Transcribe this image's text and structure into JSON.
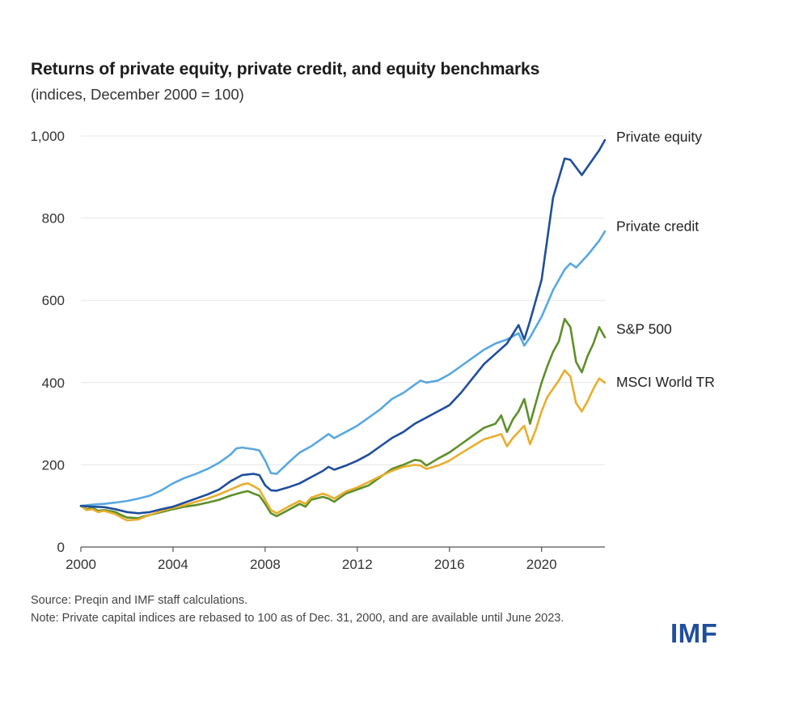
{
  "chart_data": {
    "type": "line",
    "title": "Returns of private equity, private credit, and equity benchmarks",
    "subtitle": "(indices, December 2000 = 100)",
    "xlabel": "",
    "ylabel": "",
    "xlim": [
      2000,
      2022.75
    ],
    "ylim": [
      0,
      1000
    ],
    "x_ticks": [
      2000,
      2004,
      2008,
      2012,
      2016,
      2020
    ],
    "x_tick_labels": [
      "2000",
      "2004",
      "2008",
      "2012",
      "2016",
      "2020"
    ],
    "y_ticks": [
      0,
      200,
      400,
      600,
      800,
      1000
    ],
    "y_tick_labels": [
      "0",
      "200",
      "400",
      "600",
      "800",
      "1,000"
    ],
    "grid": true,
    "legend": "direct labels at right end of lines",
    "series": [
      {
        "name": "Private equity",
        "color": "#1f4e9c",
        "points": [
          [
            2000,
            100
          ],
          [
            2000.5,
            98
          ],
          [
            2001,
            97
          ],
          [
            2001.5,
            92
          ],
          [
            2002,
            85
          ],
          [
            2002.5,
            82
          ],
          [
            2003,
            85
          ],
          [
            2003.5,
            92
          ],
          [
            2004,
            98
          ],
          [
            2004.5,
            108
          ],
          [
            2005,
            118
          ],
          [
            2005.5,
            128
          ],
          [
            2006,
            140
          ],
          [
            2006.5,
            160
          ],
          [
            2007,
            175
          ],
          [
            2007.5,
            178
          ],
          [
            2007.75,
            175
          ],
          [
            2008,
            150
          ],
          [
            2008.25,
            138
          ],
          [
            2008.5,
            137
          ],
          [
            2009,
            145
          ],
          [
            2009.5,
            155
          ],
          [
            2010,
            170
          ],
          [
            2010.5,
            185
          ],
          [
            2010.75,
            195
          ],
          [
            2011,
            188
          ],
          [
            2011.5,
            198
          ],
          [
            2012,
            210
          ],
          [
            2012.5,
            225
          ],
          [
            2013,
            245
          ],
          [
            2013.5,
            265
          ],
          [
            2014,
            280
          ],
          [
            2014.5,
            300
          ],
          [
            2015,
            315
          ],
          [
            2015.5,
            330
          ],
          [
            2016,
            345
          ],
          [
            2016.5,
            375
          ],
          [
            2017,
            410
          ],
          [
            2017.5,
            445
          ],
          [
            2018,
            470
          ],
          [
            2018.5,
            495
          ],
          [
            2019,
            540
          ],
          [
            2019.25,
            505
          ],
          [
            2019.5,
            550
          ],
          [
            2020,
            650
          ],
          [
            2020.5,
            850
          ],
          [
            2021,
            945
          ],
          [
            2021.25,
            942
          ],
          [
            2021.75,
            905
          ],
          [
            2022,
            925
          ],
          [
            2022.5,
            965
          ],
          [
            2022.75,
            990
          ]
        ]
      },
      {
        "name": "Private credit",
        "color": "#58a8e0",
        "points": [
          [
            2000,
            100
          ],
          [
            2000.5,
            103
          ],
          [
            2001,
            105
          ],
          [
            2001.5,
            108
          ],
          [
            2002,
            112
          ],
          [
            2002.5,
            118
          ],
          [
            2003,
            125
          ],
          [
            2003.5,
            138
          ],
          [
            2004,
            155
          ],
          [
            2004.5,
            168
          ],
          [
            2005,
            178
          ],
          [
            2005.5,
            190
          ],
          [
            2006,
            205
          ],
          [
            2006.5,
            225
          ],
          [
            2006.75,
            240
          ],
          [
            2007,
            242
          ],
          [
            2007.5,
            238
          ],
          [
            2007.75,
            235
          ],
          [
            2008,
            210
          ],
          [
            2008.25,
            180
          ],
          [
            2008.5,
            178
          ],
          [
            2009,
            205
          ],
          [
            2009.5,
            230
          ],
          [
            2010,
            245
          ],
          [
            2010.5,
            265
          ],
          [
            2010.75,
            275
          ],
          [
            2011,
            265
          ],
          [
            2011.5,
            280
          ],
          [
            2012,
            295
          ],
          [
            2012.5,
            315
          ],
          [
            2013,
            335
          ],
          [
            2013.5,
            360
          ],
          [
            2014,
            375
          ],
          [
            2014.5,
            395
          ],
          [
            2014.75,
            405
          ],
          [
            2015,
            400
          ],
          [
            2015.5,
            405
          ],
          [
            2016,
            420
          ],
          [
            2016.5,
            440
          ],
          [
            2017,
            460
          ],
          [
            2017.5,
            480
          ],
          [
            2018,
            495
          ],
          [
            2018.5,
            505
          ],
          [
            2019,
            520
          ],
          [
            2019.25,
            490
          ],
          [
            2019.5,
            510
          ],
          [
            2020,
            560
          ],
          [
            2020.5,
            625
          ],
          [
            2021,
            675
          ],
          [
            2021.25,
            690
          ],
          [
            2021.5,
            680
          ],
          [
            2022,
            710
          ],
          [
            2022.5,
            745
          ],
          [
            2022.75,
            768
          ]
        ]
      },
      {
        "name": "S&P 500",
        "color": "#5e8f2a",
        "points": [
          [
            2000,
            100
          ],
          [
            2000.25,
            92
          ],
          [
            2000.5,
            95
          ],
          [
            2000.75,
            88
          ],
          [
            2001,
            90
          ],
          [
            2001.5,
            85
          ],
          [
            2001.75,
            78
          ],
          [
            2002,
            72
          ],
          [
            2002.5,
            70
          ],
          [
            2002.75,
            75
          ],
          [
            2003,
            78
          ],
          [
            2003.5,
            85
          ],
          [
            2004,
            92
          ],
          [
            2004.5,
            98
          ],
          [
            2005,
            102
          ],
          [
            2005.5,
            108
          ],
          [
            2006,
            115
          ],
          [
            2006.5,
            125
          ],
          [
            2007,
            133
          ],
          [
            2007.25,
            136
          ],
          [
            2007.5,
            130
          ],
          [
            2007.75,
            125
          ],
          [
            2008,
            105
          ],
          [
            2008.25,
            82
          ],
          [
            2008.5,
            75
          ],
          [
            2009,
            90
          ],
          [
            2009.5,
            105
          ],
          [
            2009.75,
            98
          ],
          [
            2010,
            115
          ],
          [
            2010.5,
            122
          ],
          [
            2010.75,
            118
          ],
          [
            2011,
            110
          ],
          [
            2011.5,
            130
          ],
          [
            2012,
            140
          ],
          [
            2012.5,
            150
          ],
          [
            2013,
            170
          ],
          [
            2013.5,
            190
          ],
          [
            2014,
            200
          ],
          [
            2014.5,
            212
          ],
          [
            2014.75,
            210
          ],
          [
            2015,
            198
          ],
          [
            2015.5,
            215
          ],
          [
            2016,
            230
          ],
          [
            2016.5,
            250
          ],
          [
            2017,
            270
          ],
          [
            2017.5,
            290
          ],
          [
            2018,
            300
          ],
          [
            2018.25,
            320
          ],
          [
            2018.5,
            280
          ],
          [
            2018.75,
            310
          ],
          [
            2019,
            330
          ],
          [
            2019.25,
            360
          ],
          [
            2019.5,
            300
          ],
          [
            2019.75,
            350
          ],
          [
            2020,
            400
          ],
          [
            2020.25,
            440
          ],
          [
            2020.5,
            475
          ],
          [
            2020.75,
            500
          ],
          [
            2021,
            555
          ],
          [
            2021.25,
            535
          ],
          [
            2021.5,
            450
          ],
          [
            2021.75,
            425
          ],
          [
            2022,
            465
          ],
          [
            2022.25,
            495
          ],
          [
            2022.5,
            535
          ],
          [
            2022.75,
            510
          ]
        ]
      },
      {
        "name": "MSCI World TR",
        "color": "#e8ae2d",
        "points": [
          [
            2000,
            100
          ],
          [
            2000.25,
            90
          ],
          [
            2000.5,
            92
          ],
          [
            2000.75,
            85
          ],
          [
            2001,
            88
          ],
          [
            2001.5,
            80
          ],
          [
            2001.75,
            72
          ],
          [
            2002,
            65
          ],
          [
            2002.5,
            67
          ],
          [
            2002.75,
            73
          ],
          [
            2003,
            78
          ],
          [
            2003.5,
            88
          ],
          [
            2004,
            95
          ],
          [
            2004.5,
            102
          ],
          [
            2005,
            110
          ],
          [
            2005.5,
            118
          ],
          [
            2006,
            128
          ],
          [
            2006.5,
            140
          ],
          [
            2007,
            152
          ],
          [
            2007.25,
            155
          ],
          [
            2007.5,
            148
          ],
          [
            2007.75,
            140
          ],
          [
            2008,
            115
          ],
          [
            2008.25,
            90
          ],
          [
            2008.5,
            82
          ],
          [
            2009,
            98
          ],
          [
            2009.5,
            112
          ],
          [
            2009.75,
            105
          ],
          [
            2010,
            120
          ],
          [
            2010.5,
            130
          ],
          [
            2010.75,
            125
          ],
          [
            2011,
            118
          ],
          [
            2011.5,
            135
          ],
          [
            2012,
            145
          ],
          [
            2012.5,
            158
          ],
          [
            2013,
            172
          ],
          [
            2013.5,
            185
          ],
          [
            2014,
            195
          ],
          [
            2014.5,
            200
          ],
          [
            2014.75,
            198
          ],
          [
            2015,
            190
          ],
          [
            2015.5,
            198
          ],
          [
            2016,
            210
          ],
          [
            2016.5,
            228
          ],
          [
            2017,
            245
          ],
          [
            2017.5,
            262
          ],
          [
            2018,
            270
          ],
          [
            2018.25,
            275
          ],
          [
            2018.5,
            245
          ],
          [
            2018.75,
            265
          ],
          [
            2019,
            280
          ],
          [
            2019.25,
            295
          ],
          [
            2019.5,
            250
          ],
          [
            2019.75,
            285
          ],
          [
            2020,
            330
          ],
          [
            2020.25,
            365
          ],
          [
            2020.5,
            385
          ],
          [
            2020.75,
            405
          ],
          [
            2021,
            430
          ],
          [
            2021.25,
            415
          ],
          [
            2021.5,
            350
          ],
          [
            2021.75,
            330
          ],
          [
            2022,
            355
          ],
          [
            2022.25,
            385
          ],
          [
            2022.5,
            410
          ],
          [
            2022.75,
            400
          ]
        ]
      }
    ]
  },
  "footer": {
    "source": "Source: Preqin and IMF staff calculations.",
    "note": "Note: Private capital indices are rebased to 100 as of Dec. 31, 2000, and are available until June 2023."
  },
  "logo": {
    "text": "IMF",
    "color": "#1f4e9c"
  }
}
